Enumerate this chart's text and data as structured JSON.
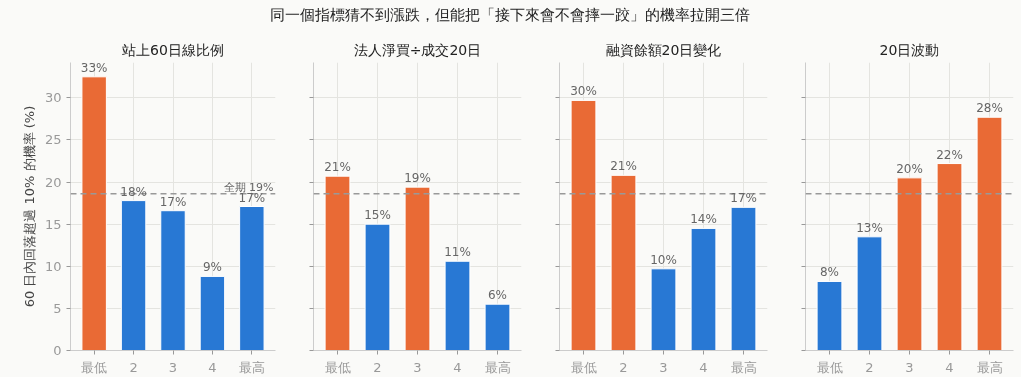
{
  "chart_data": [
    {
      "type": "bar",
      "title": "站上60日線比例",
      "annotations": [
        "同一個指標猜不到漲跌，但能把「接下來會不會摔一跤」的機率拉開三倍"
      ],
      "ylabel": "60 日內回落超過 10% 的機率 (%)",
      "categories": [
        "最低",
        "2",
        "3",
        "4",
        "最高"
      ],
      "values": [
        32.5,
        17.8,
        16.6,
        8.8,
        17.1
      ],
      "value_labels": [
        "33%",
        "18%",
        "17%",
        "9%",
        "17%"
      ],
      "colors": [
        "#e96a35",
        "#2878d4",
        "#2878d4",
        "#2878d4",
        "#2878d4"
      ],
      "ylim": [
        0,
        34.2
      ],
      "yticks": [
        0,
        5,
        10,
        15,
        20,
        25,
        30
      ],
      "grid": true,
      "ref_lines": [
        {
          "axis": "y",
          "value": 18.6,
          "label": "全期 19%",
          "color": "#999999",
          "line_style": "dashed"
        }
      ]
    },
    {
      "type": "bar",
      "title": "法人淨買÷成交20日",
      "categories": [
        "最低",
        "2",
        "3",
        "4",
        "最高"
      ],
      "values": [
        20.7,
        15.0,
        19.4,
        10.6,
        5.5
      ],
      "value_labels": [
        "21%",
        "15%",
        "19%",
        "11%",
        "6%"
      ],
      "colors": [
        "#e96a35",
        "#2878d4",
        "#e96a35",
        "#2878d4",
        "#2878d4"
      ],
      "ylim": [
        0,
        34.2
      ],
      "yticks": [
        0,
        5,
        10,
        15,
        20,
        25,
        30
      ],
      "grid": true,
      "tick_labels": "x",
      "ref_lines": [
        {
          "axis": "y",
          "value": 18.6,
          "color": "#999999",
          "line_style": "dashed"
        }
      ]
    },
    {
      "type": "bar",
      "title": "融資餘額20日變化",
      "categories": [
        "最低",
        "2",
        "3",
        "4",
        "最高"
      ],
      "values": [
        29.7,
        20.8,
        9.7,
        14.5,
        17.0
      ],
      "value_labels": [
        "30%",
        "21%",
        "10%",
        "14%",
        "17%"
      ],
      "colors": [
        "#e96a35",
        "#e96a35",
        "#2878d4",
        "#2878d4",
        "#2878d4"
      ],
      "ylim": [
        0,
        34.2
      ],
      "yticks": [
        0,
        5,
        10,
        15,
        20,
        25,
        30
      ],
      "grid": true,
      "tick_labels": "x",
      "ref_lines": [
        {
          "axis": "y",
          "value": 18.6,
          "color": "#999999",
          "line_style": "dashed"
        }
      ]
    },
    {
      "type": "bar",
      "title": "20日波動",
      "categories": [
        "最低",
        "2",
        "3",
        "4",
        "最高"
      ],
      "values": [
        8.2,
        13.5,
        20.5,
        22.2,
        27.7
      ],
      "value_labels": [
        "8%",
        "13%",
        "20%",
        "22%",
        "28%"
      ],
      "colors": [
        "#2878d4",
        "#2878d4",
        "#e96a35",
        "#e96a35",
        "#e96a35"
      ],
      "ylim": [
        0,
        34.2
      ],
      "yticks": [
        0,
        5,
        10,
        15,
        20,
        25,
        30
      ],
      "grid": true,
      "tick_labels": "x",
      "ref_lines": [
        {
          "axis": "y",
          "value": 18.6,
          "color": "#999999",
          "line_style": "dashed"
        }
      ]
    }
  ]
}
